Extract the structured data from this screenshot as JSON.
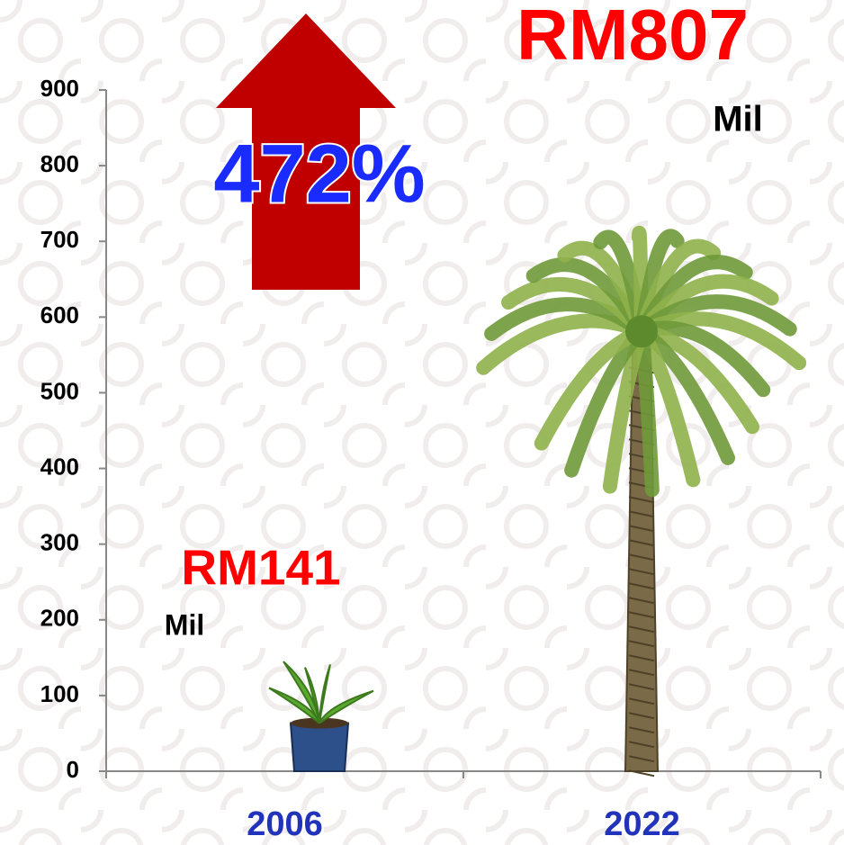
{
  "chart_data": {
    "type": "pictogram",
    "annotation": "472%",
    "categories": [
      "2006",
      "2022"
    ],
    "values": [
      141,
      807
    ],
    "value_labels": [
      "RM141",
      "RM807"
    ],
    "unit_label": "Mil",
    "ylim": [
      0,
      900
    ],
    "yticks": [
      0,
      100,
      200,
      300,
      400,
      500,
      600,
      700,
      800,
      900
    ],
    "label_color": "#ff0000",
    "category_color": "#2233bb",
    "annotation_color": "#1a2bff",
    "arrow_color": "#c00000"
  }
}
